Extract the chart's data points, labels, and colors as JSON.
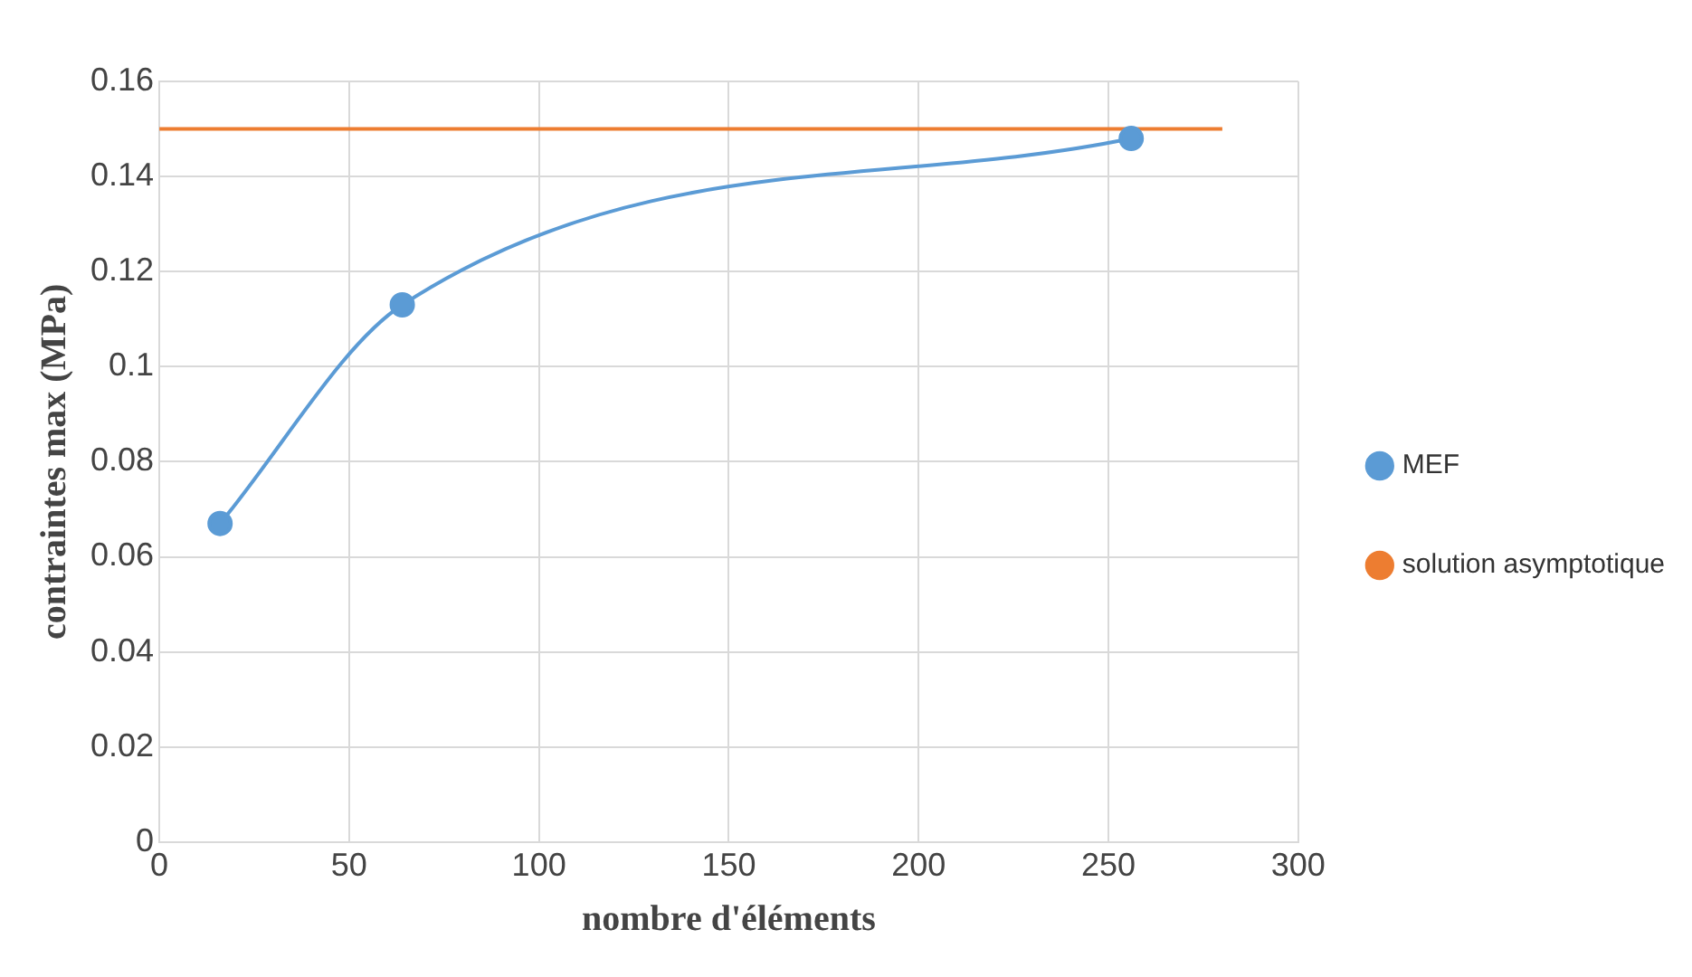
{
  "chart_data": {
    "type": "line",
    "xlabel": "nombre d'éléments",
    "ylabel": "contraintes max (MPa)",
    "xlim": [
      0,
      300
    ],
    "xticks": [
      0,
      50,
      100,
      150,
      200,
      250,
      300
    ],
    "ylim": [
      0,
      0.16
    ],
    "yticks": [
      0,
      0.02,
      0.04,
      0.06,
      0.08,
      0.1,
      0.12,
      0.14,
      0.16
    ],
    "grid": true,
    "legend": "right",
    "marker": "circle",
    "line_style": "solid",
    "series": [
      {
        "name": "MEF",
        "color": "#5b9bd5",
        "x": [
          16,
          64,
          256
        ],
        "values": [
          0.067,
          0.113,
          0.148
        ]
      },
      {
        "name": "solution asymptotique",
        "color": "#ed7d31",
        "x": [
          0,
          280
        ],
        "values": [
          0.15,
          0.15
        ],
        "marker": "none"
      }
    ]
  }
}
